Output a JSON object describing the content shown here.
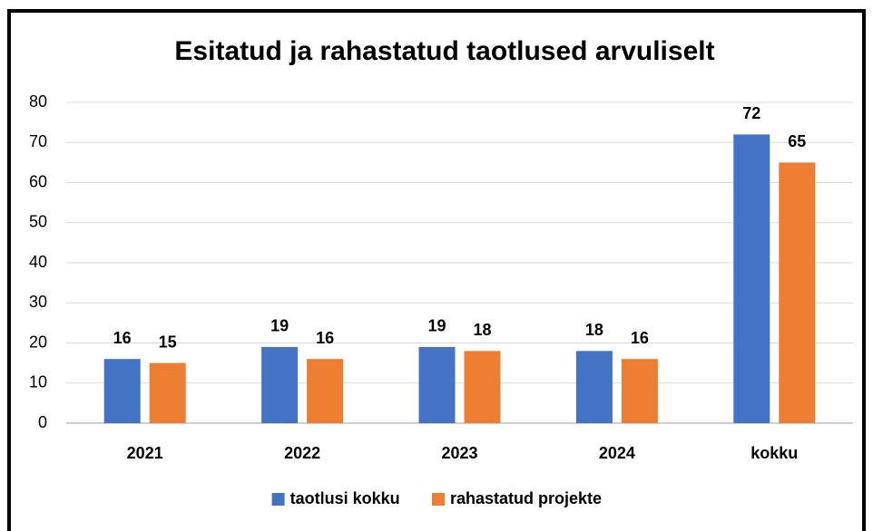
{
  "chart_data": {
    "type": "bar",
    "title": "Esitatud ja rahastatud taotlused arvuliselt",
    "categories": [
      "2021",
      "2022",
      "2023",
      "2024",
      "kokku"
    ],
    "series": [
      {
        "name": "taotlusi kokku",
        "color": "#4472c4",
        "values": [
          16,
          19,
          19,
          18,
          72
        ]
      },
      {
        "name": "rahastatud projekte",
        "color": "#ed7d31",
        "values": [
          15,
          16,
          18,
          16,
          65
        ]
      }
    ],
    "ylim": [
      0,
      80
    ],
    "yticks": [
      0,
      10,
      20,
      30,
      40,
      50,
      60,
      70,
      80
    ],
    "grid": true,
    "legend": "bottom"
  }
}
